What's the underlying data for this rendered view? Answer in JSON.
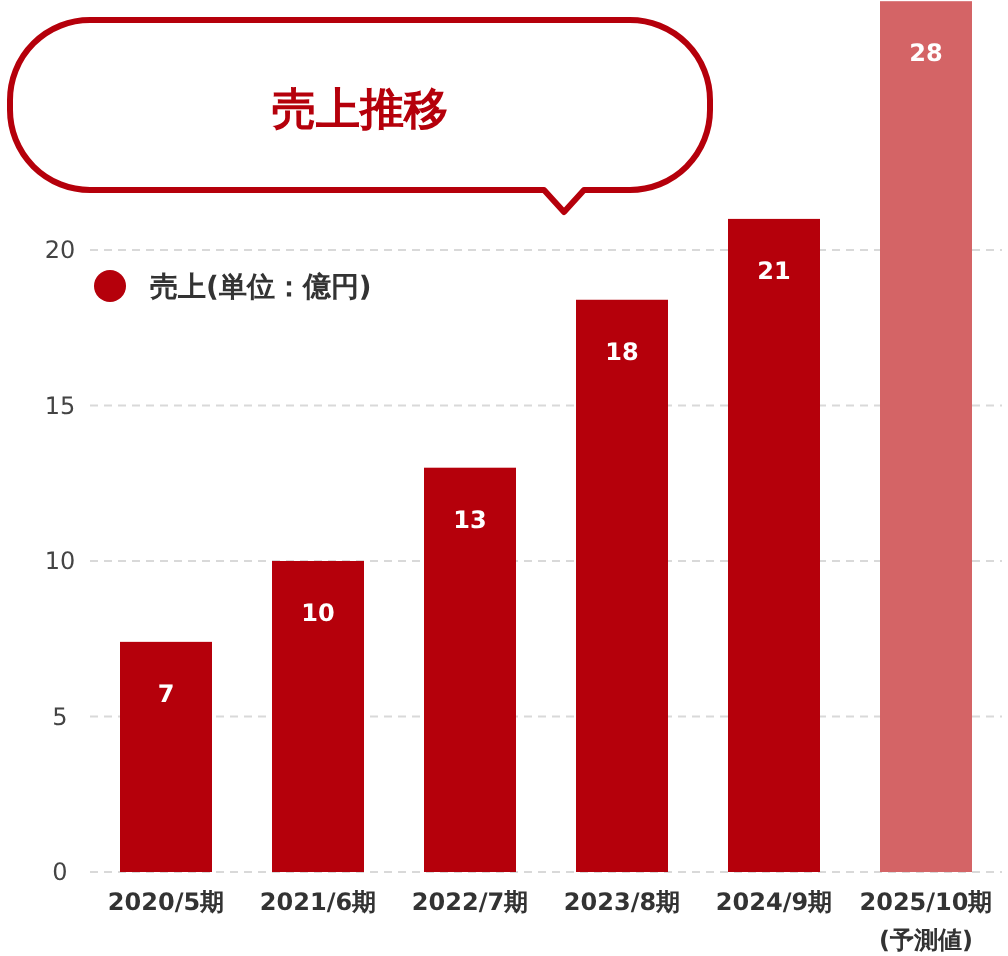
{
  "chart_data": {
    "type": "bar",
    "title": "売上推移",
    "categories": [
      "2020/5期",
      "2021/6期",
      "2022/7期",
      "2023/8期",
      "2024/9期",
      "2025/10期\n(予測値)"
    ],
    "series": [
      {
        "name": "売上(単位：億円)",
        "color": "#b5000b",
        "colors": [
          "#b5000b",
          "#b5000b",
          "#b5000b",
          "#b5000b",
          "#b5000b",
          "#d46466"
        ],
        "values": [
          7.4,
          10,
          13,
          18.4,
          21,
          28
        ],
        "value_labels": [
          "7",
          "10",
          "13",
          "18",
          "21",
          "28"
        ]
      }
    ],
    "ylim": [
      0,
      28
    ],
    "yticks": [
      0,
      5,
      10,
      15,
      20
    ],
    "grid": "y",
    "legend": "top left"
  }
}
